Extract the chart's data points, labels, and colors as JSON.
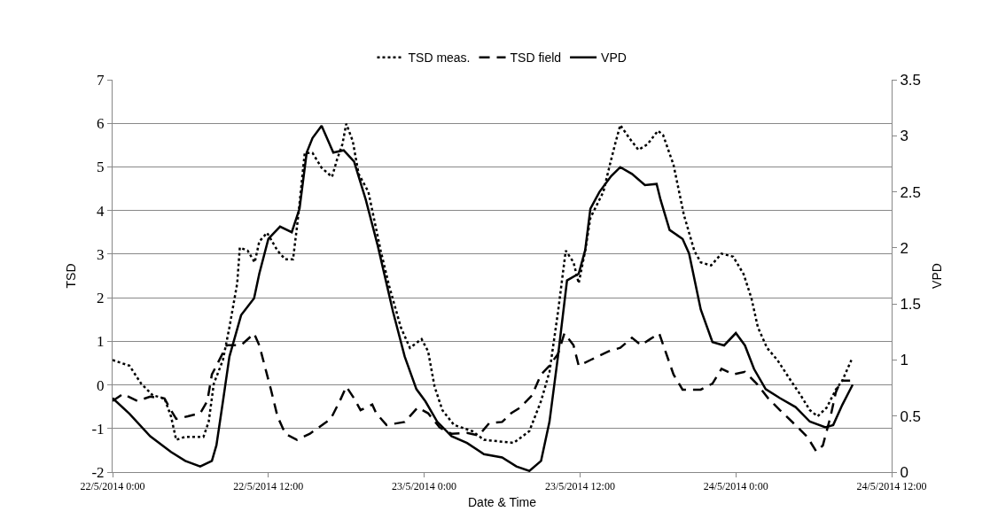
{
  "chart_data": {
    "type": "line",
    "xlabel": "Date & Time",
    "ylabel": "TSD",
    "y2label": "VPD",
    "legend": "top",
    "grid": "y",
    "marker": "none",
    "xlim": [
      "2014-05-22T00:00",
      "2014-05-24T12:00"
    ],
    "xticks": [
      {
        "value": "2014-05-22T00:00",
        "label": "22/5/2014 0:00"
      },
      {
        "value": "2014-05-22T12:00",
        "label": "22/5/2014 12:00"
      },
      {
        "value": "2014-05-23T00:00",
        "label": "23/5/2014 0:00"
      },
      {
        "value": "2014-05-23T12:00",
        "label": "23/5/2014 12:00"
      },
      {
        "value": "2014-05-24T00:00",
        "label": "24/5/2014 0:00"
      },
      {
        "value": "2014-05-24T12:00",
        "label": "24/5/2014 12:00"
      }
    ],
    "ylim": [
      -2,
      7
    ],
    "yticks": [
      -2,
      -1,
      0,
      1,
      2,
      3,
      4,
      5,
      6,
      7
    ],
    "y2lim": [
      0,
      3.5
    ],
    "y2ticks": [
      0,
      0.5,
      1,
      1.5,
      2,
      2.5,
      3,
      3.5
    ],
    "series": [
      {
        "name": "TSD meas.",
        "color": "#000000",
        "line_style": "dotted",
        "x": [
          "2014-05-22T00:00",
          "2014-05-22T01:18",
          "2014-05-22T02:12",
          "2014-05-22T03:06",
          "2014-05-22T04:00",
          "2014-05-22T04:30",
          "2014-05-22T04:54",
          "2014-05-22T05:36",
          "2014-05-22T07:00",
          "2014-05-22T07:24",
          "2014-05-22T07:48",
          "2014-05-22T08:30",
          "2014-05-22T09:00",
          "2014-05-22T09:36",
          "2014-05-22T09:48",
          "2014-05-22T10:24",
          "2014-05-22T10:57",
          "2014-05-22T11:18",
          "2014-05-22T11:54",
          "2014-05-22T12:42",
          "2014-05-22T13:18",
          "2014-05-22T13:54",
          "2014-05-22T14:12",
          "2014-05-22T14:24",
          "2014-05-22T14:48",
          "2014-05-22T15:24",
          "2014-05-22T16:06",
          "2014-05-22T16:54",
          "2014-05-22T17:18",
          "2014-05-22T17:42",
          "2014-05-22T18:00",
          "2014-05-22T18:30",
          "2014-05-22T18:57",
          "2014-05-22T19:42",
          "2014-05-22T20:39",
          "2014-05-22T21:18",
          "2014-05-22T22:12",
          "2014-05-22T22:54",
          "2014-05-22T23:48",
          "2014-05-23T00:18",
          "2014-05-23T00:48",
          "2014-05-23T01:24",
          "2014-05-23T02:18",
          "2014-05-23T03:42",
          "2014-05-23T04:36",
          "2014-05-23T06:54",
          "2014-05-23T08:06",
          "2014-05-23T09:00",
          "2014-05-23T09:39",
          "2014-05-23T10:18",
          "2014-05-23T10:54",
          "2014-05-23T11:30",
          "2014-05-23T11:54",
          "2014-05-23T12:24",
          "2014-05-23T12:48",
          "2014-05-23T13:48",
          "2014-05-23T14:18",
          "2014-05-23T14:42",
          "2014-05-23T15:06",
          "2014-05-23T15:48",
          "2014-05-23T16:30",
          "2014-05-23T17:12",
          "2014-05-23T18:00",
          "2014-05-23T18:24",
          "2014-05-23T19:12",
          "2014-05-23T20:00",
          "2014-05-23T20:48",
          "2014-05-23T21:18",
          "2014-05-23T22:06",
          "2014-05-23T22:54",
          "2014-05-23T23:48",
          "2014-05-24T00:36",
          "2014-05-24T01:12",
          "2014-05-24T01:42",
          "2014-05-24T02:24",
          "2014-05-24T03:12",
          "2014-05-24T04:06",
          "2014-05-24T05:00",
          "2014-05-24T05:42",
          "2014-05-24T06:18",
          "2014-05-24T07:00",
          "2014-05-24T07:42",
          "2014-05-24T08:12",
          "2014-05-24T08:54"
        ],
        "values": [
          0.57,
          0.44,
          0.03,
          -0.24,
          -0.31,
          -0.72,
          -1.26,
          -1.19,
          -1.19,
          -0.85,
          0.03,
          0.57,
          1.32,
          2.33,
          3.15,
          3.08,
          2.81,
          3.29,
          3.49,
          3.08,
          2.88,
          2.88,
          3.62,
          4.16,
          5.32,
          5.32,
          4.98,
          4.77,
          5.18,
          5.52,
          5.99,
          5.59,
          4.84,
          4.43,
          3.08,
          2.27,
          1.32,
          0.85,
          1.05,
          0.77,
          -0.04,
          -0.58,
          -0.92,
          -1.06,
          -1.26,
          -1.33,
          -1.06,
          -0.37,
          0.3,
          1.66,
          3.08,
          2.81,
          2.33,
          3.08,
          3.83,
          4.43,
          5.05,
          5.52,
          5.96,
          5.66,
          5.39,
          5.52,
          5.83,
          5.73,
          5.05,
          3.9,
          3.08,
          2.81,
          2.74,
          3.01,
          2.94,
          2.54,
          1.99,
          1.32,
          0.85,
          0.57,
          0.16,
          -0.24,
          -0.58,
          -0.72,
          -0.52,
          -0.11,
          0.1,
          0.57
        ]
      },
      {
        "name": "TSD field",
        "color": "#000000",
        "line_style": "dashed",
        "x": [
          "2014-05-22T00:00",
          "2014-05-22T00:48",
          "2014-05-22T01:54",
          "2014-05-22T02:54",
          "2014-05-22T04:00",
          "2014-05-22T04:30",
          "2014-05-22T04:54",
          "2014-05-22T05:48",
          "2014-05-22T06:45",
          "2014-05-22T07:18",
          "2014-05-22T07:39",
          "2014-05-22T08:06",
          "2014-05-22T08:48",
          "2014-05-22T09:54",
          "2014-05-22T10:54",
          "2014-05-22T11:18",
          "2014-05-22T12:12",
          "2014-05-22T12:42",
          "2014-05-22T13:18",
          "2014-05-22T14:12",
          "2014-05-22T15:12",
          "2014-05-22T16:48",
          "2014-05-22T17:30",
          "2014-05-22T18:00",
          "2014-05-22T18:36",
          "2014-05-22T19:06",
          "2014-05-22T20:00",
          "2014-05-22T20:18",
          "2014-05-22T21:06",
          "2014-05-22T22:30",
          "2014-05-22T23:30",
          "2014-05-23T00:18",
          "2014-05-23T01:12",
          "2014-05-23T02:06",
          "2014-05-23T03:18",
          "2014-05-23T04:12",
          "2014-05-23T05:00",
          "2014-05-23T06:00",
          "2014-05-23T06:42",
          "2014-05-23T07:24",
          "2014-05-23T08:18",
          "2014-05-23T09:00",
          "2014-05-23T09:39",
          "2014-05-23T10:18",
          "2014-05-23T10:48",
          "2014-05-23T11:30",
          "2014-05-23T11:54",
          "2014-05-23T12:48",
          "2014-05-23T14:12",
          "2014-05-23T15:06",
          "2014-05-23T16:00",
          "2014-05-23T16:42",
          "2014-05-23T17:24",
          "2014-05-23T18:06",
          "2014-05-23T19:12",
          "2014-05-23T19:54",
          "2014-05-23T21:18",
          "2014-05-23T22:12",
          "2014-05-23T22:54",
          "2014-05-23T23:48",
          "2014-05-24T00:42",
          "2014-05-24T01:36",
          "2014-05-24T02:30",
          "2014-05-24T03:24",
          "2014-05-24T04:48",
          "2014-05-24T05:30",
          "2014-05-24T06:12",
          "2014-05-24T06:42",
          "2014-05-24T07:18",
          "2014-05-24T07:42",
          "2014-05-24T08:06",
          "2014-05-24T08:48"
        ],
        "values": [
          -0.37,
          -0.21,
          -0.37,
          -0.27,
          -0.31,
          -0.58,
          -0.78,
          -0.72,
          -0.65,
          -0.37,
          0.24,
          0.5,
          0.91,
          0.91,
          1.18,
          0.91,
          -0.11,
          -0.72,
          -1.12,
          -1.26,
          -1.12,
          -0.78,
          -0.37,
          -0.04,
          -0.31,
          -0.58,
          -0.45,
          -0.65,
          -0.92,
          -0.85,
          -0.52,
          -0.65,
          -0.98,
          -1.12,
          -1.1,
          -1.16,
          -0.88,
          -0.85,
          -0.65,
          -0.52,
          -0.24,
          0.24,
          0.44,
          0.71,
          1.18,
          0.91,
          0.44,
          0.57,
          0.77,
          0.85,
          1.08,
          0.91,
          1.05,
          1.18,
          0.24,
          -0.11,
          -0.11,
          0.03,
          0.37,
          0.24,
          0.3,
          0.03,
          -0.31,
          -0.58,
          -0.98,
          -1.19,
          -1.53,
          -1.39,
          -0.72,
          -0.17,
          0.1,
          0.1
        ]
      },
      {
        "name": "VPD",
        "color": "#000000",
        "line_style": "solid",
        "axis": "y2",
        "x": [
          "2014-05-22T00:00",
          "2014-05-22T01:18",
          "2014-05-22T02:54",
          "2014-05-22T04:30",
          "2014-05-22T05:36",
          "2014-05-22T06:45",
          "2014-05-22T07:39",
          "2014-05-22T08:00",
          "2014-05-22T08:30",
          "2014-05-22T09:00",
          "2014-05-22T09:54",
          "2014-05-22T10:54",
          "2014-05-22T11:18",
          "2014-05-22T12:00",
          "2014-05-22T12:54",
          "2014-05-22T13:48",
          "2014-05-22T14:24",
          "2014-05-22T14:57",
          "2014-05-22T15:24",
          "2014-05-22T16:06",
          "2014-05-22T17:00",
          "2014-05-22T17:48",
          "2014-05-22T18:36",
          "2014-05-22T19:30",
          "2014-05-22T20:24",
          "2014-05-22T21:36",
          "2014-05-22T22:30",
          "2014-05-22T23:24",
          "2014-05-23T00:06",
          "2014-05-23T01:00",
          "2014-05-23T02:06",
          "2014-05-23T03:18",
          "2014-05-23T04:36",
          "2014-05-23T06:00",
          "2014-05-23T07:06",
          "2014-05-23T08:06",
          "2014-05-23T09:00",
          "2014-05-23T09:39",
          "2014-05-23T10:18",
          "2014-05-23T11:00",
          "2014-05-23T11:54",
          "2014-05-23T12:24",
          "2014-05-23T12:48",
          "2014-05-23T13:30",
          "2014-05-23T14:24",
          "2014-05-23T15:06",
          "2014-05-23T16:00",
          "2014-05-23T17:00",
          "2014-05-23T17:54",
          "2014-05-23T18:12",
          "2014-05-23T18:54",
          "2014-05-23T19:54",
          "2014-05-23T20:24",
          "2014-05-23T21:18",
          "2014-05-23T22:12",
          "2014-05-23T23:06",
          "2014-05-24T00:00",
          "2014-05-24T00:42",
          "2014-05-24T01:24",
          "2014-05-24T02:18",
          "2014-05-24T03:24",
          "2014-05-24T04:36",
          "2014-05-24T05:42",
          "2014-05-24T06:54",
          "2014-05-24T07:30",
          "2014-05-24T08:12",
          "2014-05-24T09:00"
        ],
        "values": [
          0.66,
          0.52,
          0.32,
          0.18,
          0.1,
          0.05,
          0.1,
          0.24,
          0.63,
          1.03,
          1.4,
          1.55,
          1.77,
          2.08,
          2.19,
          2.14,
          2.35,
          2.85,
          2.98,
          3.09,
          2.85,
          2.87,
          2.77,
          2.43,
          2.03,
          1.43,
          1.03,
          0.74,
          0.63,
          0.45,
          0.32,
          0.26,
          0.16,
          0.13,
          0.05,
          0.01,
          0.1,
          0.45,
          1.03,
          1.71,
          1.77,
          1.98,
          2.35,
          2.5,
          2.64,
          2.72,
          2.66,
          2.56,
          2.57,
          2.43,
          2.16,
          2.08,
          1.95,
          1.45,
          1.16,
          1.13,
          1.24,
          1.13,
          0.92,
          0.74,
          0.66,
          0.58,
          0.45,
          0.4,
          0.42,
          0.6,
          0.78
        ]
      }
    ]
  }
}
